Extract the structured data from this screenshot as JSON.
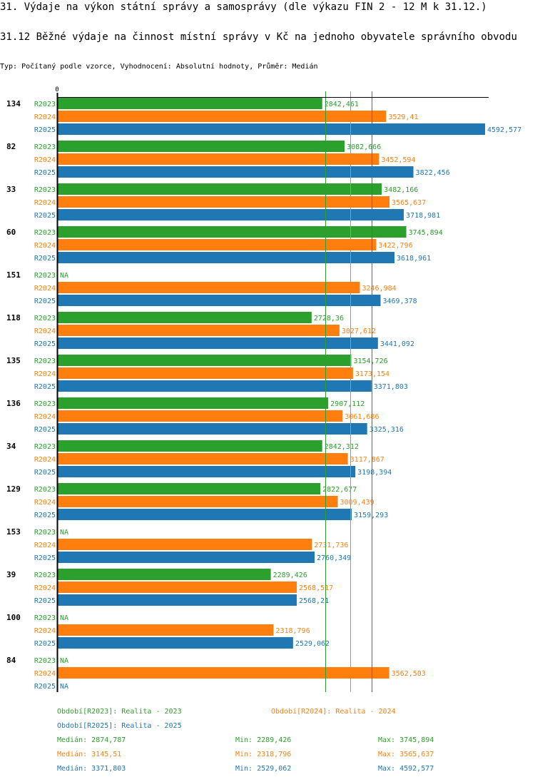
{
  "header": {
    "title": "31. Výdaje na výkon státní správy a samosprávy (dle výkazu FIN 2 - 12 M k 31.12.)",
    "subtitle": "31.12 Běžné výdaje na činnost místní správy v Kč na jednoho obyvatele správního obvodu",
    "info": "Typ: Počítaný podle vzorce, Vyhodnocení: Absolutní hodnoty, Průměr: Medián"
  },
  "colors": {
    "R2023": "#2ca02c",
    "R2024": "#ff7f0e",
    "R2025": "#1f77b4"
  },
  "chart_data": {
    "type": "bar",
    "orientation": "horizontal",
    "title": "31.12 Běžné výdaje na činnost místní správy v Kč na jednoho obyvatele správního obvodu",
    "xlabel": "",
    "ylabel": "",
    "x_tick_labels": [
      "0"
    ],
    "xlim": [
      0,
      4650
    ],
    "grid": false,
    "categories": [
      "134",
      "82",
      "33",
      "60",
      "151",
      "118",
      "135",
      "136",
      "34",
      "129",
      "153",
      "39",
      "100",
      "84"
    ],
    "series": [
      {
        "name": "R2023",
        "labels": [
          "2842,461",
          "3082,666",
          "3482,166",
          "3745,894",
          "NA",
          "2728,36",
          "3154,726",
          "2907,112",
          "2842,312",
          "2822,677",
          "NA",
          "2289,426",
          "NA",
          "NA"
        ],
        "values": [
          2842.461,
          3082.666,
          3482.166,
          3745.894,
          null,
          2728.36,
          3154.726,
          2907.112,
          2842.312,
          2822.677,
          null,
          2289.426,
          null,
          null
        ]
      },
      {
        "name": "R2024",
        "labels": [
          "3529,41",
          "3452,594",
          "3565,637",
          "3422,796",
          "3246,984",
          "3027,612",
          "3173,154",
          "3061,686",
          "3117,867",
          "3009,439",
          "2731,736",
          "2568,517",
          "2318,796",
          "3562,503"
        ],
        "values": [
          3529.41,
          3452.594,
          3565.637,
          3422.796,
          3246.984,
          3027.612,
          3173.154,
          3061.686,
          3117.867,
          3009.439,
          2731.736,
          2568.517,
          2318.796,
          3562.503
        ]
      },
      {
        "name": "R2025",
        "labels": [
          "4592,577",
          "3822,456",
          "3718,981",
          "3618,961",
          "3469,378",
          "3441,092",
          "3371,803",
          "3325,316",
          "3198,394",
          "3159,293",
          "2760,349",
          "2568,21",
          "2529,062",
          "NA"
        ],
        "values": [
          4592.577,
          3822.456,
          3718.981,
          3618.961,
          3469.378,
          3441.092,
          3371.803,
          3325.316,
          3198.394,
          3159.293,
          2760.349,
          2568.21,
          2529.062,
          null
        ]
      }
    ],
    "reference_lines": [
      {
        "series": "R2023",
        "name": "Medián",
        "value": 2874.787
      },
      {
        "series": "R2024",
        "name": "Medián",
        "value": 3145.51
      },
      {
        "series": "R2025",
        "name": "Medián",
        "value": 3371.803
      }
    ],
    "legend": {
      "placement": "bottom",
      "periods": [
        {
          "series": "R2023",
          "text": "Období[R2023]: Realita - 2023"
        },
        {
          "series": "R2024",
          "text": "Období[R2024]: Realita - 2024"
        },
        {
          "series": "R2025",
          "text": "Období[R2025]: Realita - 2025"
        }
      ],
      "stats": [
        {
          "series": "R2023",
          "median": "Medián: 2874,787",
          "min": "Min: 2289,426",
          "max": "Max: 3745,894"
        },
        {
          "series": "R2024",
          "median": "Medián: 3145,51",
          "min": "Min: 2318,796",
          "max": "Max: 3565,637"
        },
        {
          "series": "R2025",
          "median": "Medián: 3371,803",
          "min": "Min: 2529,062",
          "max": "Max: 4592,577"
        }
      ]
    }
  }
}
